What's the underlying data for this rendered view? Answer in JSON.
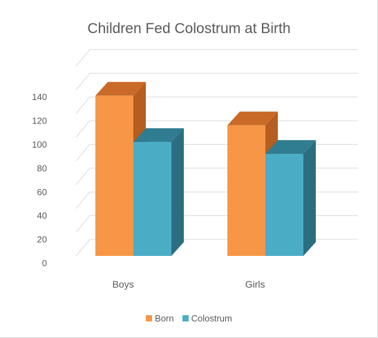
{
  "chart_data": {
    "type": "bar",
    "title": "Children Fed Colostrum at Birth",
    "categories": [
      "Boys",
      "Girls"
    ],
    "series": [
      {
        "name": "Born",
        "values": [
          135,
          110
        ]
      },
      {
        "name": "Colostrum",
        "values": [
          96,
          86
        ]
      }
    ],
    "yticks": [
      "0",
      "20",
      "40",
      "60",
      "80",
      "100",
      "120",
      "140"
    ],
    "ylim": [
      0,
      160
    ],
    "grid": true,
    "legend_position": "bottom",
    "style": "3d-column"
  },
  "colors": {
    "Born": {
      "front": "#f79646",
      "side": "#b65e1f",
      "top": "#c96a28"
    },
    "Colostrum": {
      "front": "#4bacc6",
      "side": "#2b6e80",
      "top": "#307c90"
    },
    "grid": "#d9d9d9"
  }
}
